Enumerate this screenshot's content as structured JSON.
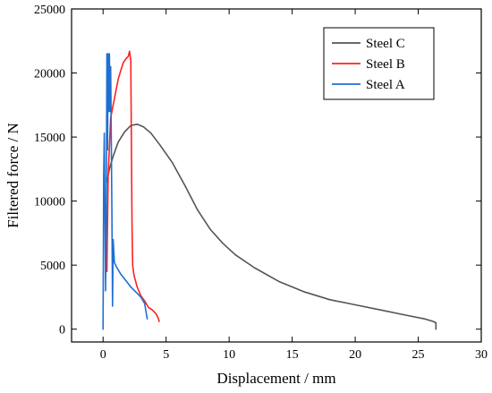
{
  "chart_data": {
    "type": "line",
    "xlabel": "Displacement / mm",
    "ylabel": "Filtered force / N",
    "xlim": [
      -2.5,
      30
    ],
    "ylim": [
      -1000,
      25000
    ],
    "x_ticks": [
      0,
      5,
      10,
      15,
      20,
      25,
      30
    ],
    "y_ticks": [
      0,
      5000,
      10000,
      15000,
      20000,
      25000
    ],
    "x_tick_labels": [
      "0",
      "5",
      "10",
      "15",
      "20",
      "25",
      "30"
    ],
    "y_tick_labels": [
      "0",
      "5000",
      "10000",
      "15000",
      "20000",
      "25000"
    ],
    "grid": false,
    "legend_position": "top-right",
    "series": [
      {
        "name": "Steel C",
        "color": "#555555",
        "x": [
          0.3,
          0.5,
          0.8,
          1.2,
          1.7,
          2.2,
          2.7,
          3.2,
          3.8,
          4.5,
          5.5,
          6.5,
          7.5,
          8.5,
          9.5,
          10.5,
          12,
          14,
          16,
          18,
          20,
          22,
          24,
          25.5,
          26.2,
          26.4,
          26.4
        ],
        "y": [
          11500,
          12500,
          13500,
          14600,
          15400,
          15900,
          16000,
          15800,
          15300,
          14400,
          13000,
          11200,
          9300,
          7800,
          6700,
          5800,
          4800,
          3700,
          2900,
          2300,
          1900,
          1500,
          1100,
          800,
          600,
          500,
          0
        ]
      },
      {
        "name": "Steel B",
        "color": "#ff2020",
        "x": [
          0.3,
          0.4,
          0.6,
          0.8,
          1.0,
          1.2,
          1.4,
          1.6,
          1.8,
          2.0,
          2.1,
          2.2,
          2.3,
          2.35,
          2.45,
          2.7,
          3.0,
          3.3,
          3.6,
          3.9,
          4.2,
          4.4,
          4.45
        ],
        "y": [
          4500,
          12000,
          16500,
          17500,
          18500,
          19500,
          20200,
          20800,
          21100,
          21300,
          21700,
          21000,
          8000,
          5000,
          4200,
          3300,
          2600,
          2200,
          1700,
          1500,
          1200,
          800,
          600
        ]
      },
      {
        "name": "Steel A",
        "color": "#1f6fd0",
        "x": [
          0.0,
          0.05,
          0.1,
          0.2,
          0.25,
          0.3,
          0.35,
          0.4,
          0.45,
          0.5,
          0.55,
          0.6,
          0.65,
          0.7,
          0.75,
          0.8,
          0.9,
          1.1,
          1.4,
          1.8,
          2.2,
          2.6,
          3.0,
          3.3,
          3.5
        ],
        "y": [
          0,
          12000,
          15300,
          3000,
          9000,
          21500,
          14000,
          21500,
          17000,
          21500,
          17000,
          20500,
          15000,
          9000,
          1800,
          7000,
          5200,
          4800,
          4300,
          3800,
          3300,
          2900,
          2500,
          2000,
          800
        ]
      }
    ]
  }
}
